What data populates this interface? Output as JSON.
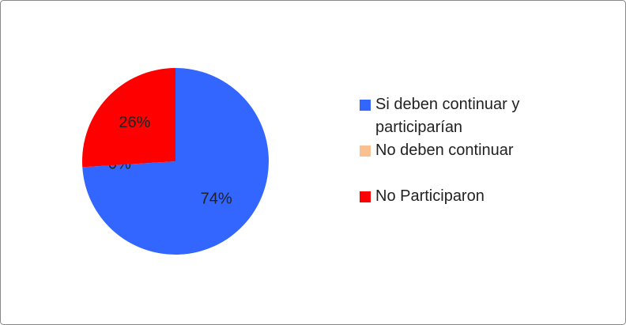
{
  "chart_data": {
    "type": "pie",
    "categories": [
      "Si deben continuar y participarían",
      "No deben continuar",
      "No Participaron"
    ],
    "values": [
      74,
      0,
      26
    ],
    "value_labels": [
      "74%",
      "0%",
      "26%"
    ],
    "colors": [
      "#3366ff",
      "#fac090",
      "#ff0000"
    ],
    "legend": "right"
  }
}
